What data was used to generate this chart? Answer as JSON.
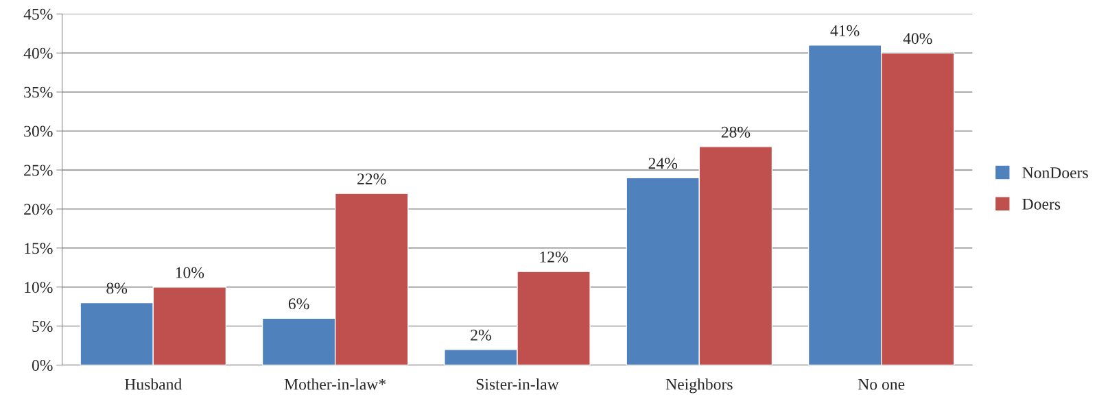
{
  "chart_data": {
    "type": "bar",
    "categories": [
      "Husband",
      "Mother-in-law*",
      "Sister-in-law",
      "Neighbors",
      "No one"
    ],
    "series": [
      {
        "name": "NonDoers",
        "color": "#4f81bd",
        "values": [
          8,
          6,
          2,
          24,
          41
        ],
        "value_labels": [
          "8%",
          "6%",
          "2%",
          "24%",
          "41%"
        ]
      },
      {
        "name": "Doers",
        "color": "#c0504d",
        "values": [
          10,
          22,
          12,
          28,
          40
        ],
        "value_labels": [
          "10%",
          "22%",
          "12%",
          "28%",
          "40%"
        ]
      }
    ],
    "ylim": [
      0,
      45
    ],
    "yticks": [
      {
        "value": 0,
        "label": "0%"
      },
      {
        "value": 5,
        "label": "5%"
      },
      {
        "value": 10,
        "label": "10%"
      },
      {
        "value": 15,
        "label": "15%"
      },
      {
        "value": 20,
        "label": "20%"
      },
      {
        "value": 25,
        "label": "25%"
      },
      {
        "value": 30,
        "label": "30%"
      },
      {
        "value": 35,
        "label": "35%"
      },
      {
        "value": 40,
        "label": "40%"
      },
      {
        "value": 45,
        "label": "45%"
      }
    ],
    "grid": "y",
    "legend": "right"
  }
}
